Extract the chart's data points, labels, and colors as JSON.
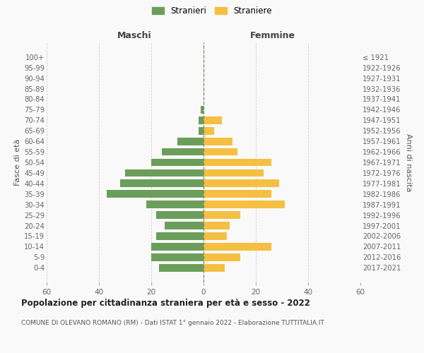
{
  "age_groups": [
    "100+",
    "95-99",
    "90-94",
    "85-89",
    "80-84",
    "75-79",
    "70-74",
    "65-69",
    "60-64",
    "55-59",
    "50-54",
    "45-49",
    "40-44",
    "35-39",
    "30-34",
    "25-29",
    "20-24",
    "15-19",
    "10-14",
    "5-9",
    "0-4"
  ],
  "birth_years": [
    "≤ 1921",
    "1922-1926",
    "1927-1931",
    "1932-1936",
    "1937-1941",
    "1942-1946",
    "1947-1951",
    "1952-1956",
    "1957-1961",
    "1962-1966",
    "1967-1971",
    "1972-1976",
    "1977-1981",
    "1982-1986",
    "1987-1991",
    "1992-1996",
    "1997-2001",
    "2002-2006",
    "2007-2011",
    "2012-2016",
    "2017-2021"
  ],
  "maschi": [
    0,
    0,
    0,
    0,
    0,
    1,
    2,
    2,
    10,
    16,
    20,
    30,
    32,
    37,
    22,
    18,
    15,
    18,
    20,
    20,
    17
  ],
  "femmine": [
    0,
    0,
    0,
    0,
    0,
    0,
    7,
    4,
    11,
    13,
    26,
    23,
    29,
    26,
    31,
    14,
    10,
    9,
    26,
    14,
    8
  ],
  "maschi_color": "#6a9e5a",
  "femmine_color": "#f5bf42",
  "background_color": "#f9f9f9",
  "grid_color": "#cccccc",
  "title": "Popolazione per cittadinanza straniera per età e sesso - 2022",
  "subtitle": "COMUNE DI OLEVANO ROMANO (RM) - Dati ISTAT 1° gennaio 2022 - Elaborazione TUTTITALIA.IT",
  "ylabel_left": "Fasce di età",
  "ylabel_right": "Anni di nascita",
  "xlabel_left": "Maschi",
  "xlabel_right": "Femmine",
  "legend_maschi": "Stranieri",
  "legend_femmine": "Straniere",
  "xlim": 60
}
